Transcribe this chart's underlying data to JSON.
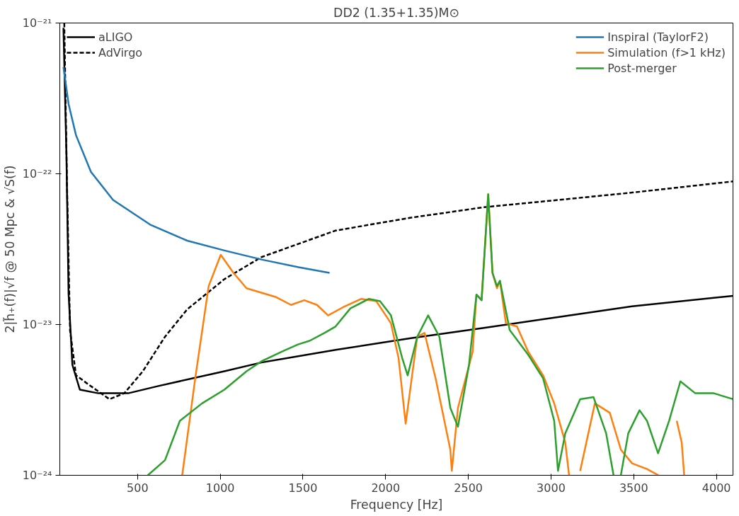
{
  "chart_data": {
    "type": "line",
    "title": "DD2 (1.35+1.35)M⊙",
    "xlabel": "Frequency [Hz]",
    "ylabel": "2|h̃₊(f)|√f @ 50 Mpc & √S(f)",
    "log": "y",
    "grid": false,
    "legend": "top right",
    "marker": "none",
    "xlim": [
      30,
      4100
    ],
    "xticks": [
      500,
      1000,
      1500,
      2000,
      2500,
      3000,
      3500,
      4000
    ],
    "ylim": [
      1e-24,
      1e-21
    ],
    "yticks": [
      {
        "value": 1e-24,
        "label": "10⁻²⁴"
      },
      {
        "value": 1e-23,
        "label": "10⁻²³"
      },
      {
        "value": 1e-22,
        "label": "10⁻²²"
      },
      {
        "value": 1e-21,
        "label": "10⁻²¹"
      }
    ],
    "series": [
      {
        "name": "aLIGO",
        "color": "#000000",
        "line_style": "solid",
        "x": [
          52,
          70,
          83,
          106,
          151,
          263,
          443,
          621,
          1025,
          1249,
          1698,
          2146,
          2594,
          3042,
          3490,
          4100
        ],
        "values": [
          9.3e-22,
          1.35e-22,
          1.6e-23,
          5.4e-24,
          3.7e-24,
          3.5e-24,
          3.5e-24,
          3.9e-24,
          4.9e-24,
          5.6e-24,
          6.8e-24,
          8.1e-24,
          9.5e-24,
          1.12e-23,
          1.32e-23,
          1.55e-23
        ]
      },
      {
        "name": "AdVirgo",
        "color": "#000000",
        "line_style": "dashed",
        "x": [
          57,
          74,
          92,
          128,
          218,
          330,
          420,
          532,
          666,
          800,
          1025,
          1249,
          1697,
          2146,
          2594,
          3042,
          3490,
          4100
        ],
        "values": [
          1e-21,
          7.9e-23,
          9.1e-24,
          4.6e-24,
          3.9e-24,
          3.2e-24,
          3.5e-24,
          4.9e-24,
          8.3e-24,
          1.26e-23,
          2e-23,
          2.8e-23,
          4.2e-23,
          5.1e-23,
          6e-23,
          6.7e-23,
          7.5e-23,
          8.9e-23
        ]
      },
      {
        "name": "Inspiral (TaylorF2)",
        "color": "#1f77b4",
        "line_style": "solid",
        "x": [
          52,
          83,
          128,
          218,
          352,
          576,
          800,
          1025,
          1249,
          1473,
          1661
        ],
        "values": [
          5.1e-22,
          2.9e-22,
          1.8e-22,
          1.03e-22,
          6.7e-23,
          4.6e-23,
          3.6e-23,
          3.1e-23,
          2.7e-23,
          2.4e-23,
          2.2e-23
        ]
      },
      {
        "name": "Simulation (f>1 kHz)",
        "color": "#ff7f0e",
        "line_style": "solid",
        "x": [
          770,
          850,
          930,
          1003,
          1080,
          1159,
          1338,
          1428,
          1508,
          1585,
          1652,
          1741,
          1853,
          1943,
          2032,
          2078,
          2121,
          2191,
          2235,
          2302,
          2391,
          2400,
          2437,
          2526,
          2549,
          2580,
          2620,
          2646,
          2673,
          2691,
          2727,
          2794,
          2862,
          2952,
          3019,
          3086,
          3109,
          3150,
          3176,
          3265,
          3355,
          3422,
          3490,
          3580,
          3650,
          3700,
          3760,
          3790,
          3805
        ],
        "values": [
          1e-24,
          4.5e-24,
          1.8e-23,
          2.9e-23,
          2.2e-23,
          1.74e-23,
          1.52e-23,
          1.35e-23,
          1.45e-23,
          1.35e-23,
          1.15e-23,
          1.3e-23,
          1.48e-23,
          1.43e-23,
          1.02e-23,
          6e-24,
          2.2e-24,
          8.3e-24,
          8.8e-24,
          4.4e-24,
          1.48e-24,
          1.07e-24,
          2.8e-24,
          6.6e-24,
          1.58e-23,
          1.45e-23,
          7.3e-23,
          2.2e-23,
          1.74e-23,
          1.95e-23,
          1.02e-23,
          9.7e-24,
          6.6e-24,
          4.6e-24,
          3e-24,
          1.65e-24,
          1e-24,
          null,
          1.07e-24,
          3e-24,
          2.6e-24,
          1.48e-24,
          1.2e-24,
          1.1e-24,
          1e-24,
          null,
          2.3e-24,
          1.65e-24,
          1e-24
        ]
      },
      {
        "name": "Post-merger",
        "color": "#2ca02c",
        "line_style": "solid",
        "x": [
          562,
          666,
          756,
          890,
          1025,
          1159,
          1249,
          1383,
          1473,
          1540,
          1630,
          1697,
          1787,
          1899,
          1966,
          2032,
          2100,
          2133,
          2191,
          2257,
          2325,
          2391,
          2437,
          2504,
          2549,
          2580,
          2620,
          2646,
          2673,
          2691,
          2750,
          2862,
          2952,
          3019,
          3042,
          3086,
          3176,
          3257,
          3333,
          3378,
          3400,
          3422,
          3467,
          3535,
          3580,
          3647,
          3714,
          3782,
          3872,
          3984,
          4100
        ],
        "values": [
          1e-24,
          1.26e-24,
          2.3e-24,
          3e-24,
          3.7e-24,
          4.9e-24,
          5.7e-24,
          6.7e-24,
          7.4e-24,
          7.8e-24,
          8.8e-24,
          9.7e-24,
          1.28e-23,
          1.48e-23,
          1.43e-23,
          1.15e-23,
          6e-24,
          4.6e-24,
          8.3e-24,
          1.15e-23,
          8.3e-24,
          2.8e-24,
          2.1e-24,
          5.4e-24,
          1.58e-23,
          1.45e-23,
          7.3e-23,
          2.2e-23,
          1.8e-23,
          1.95e-23,
          9.2e-24,
          6.3e-24,
          4.4e-24,
          2.3e-24,
          1.07e-24,
          1.9e-24,
          3.2e-24,
          3.3e-24,
          1.9e-24,
          1e-24,
          null,
          1e-24,
          1.9e-24,
          2.7e-24,
          2.3e-24,
          1.4e-24,
          2.3e-24,
          4.2e-24,
          3.5e-24,
          3.5e-24,
          3.2e-24
        ]
      }
    ]
  }
}
